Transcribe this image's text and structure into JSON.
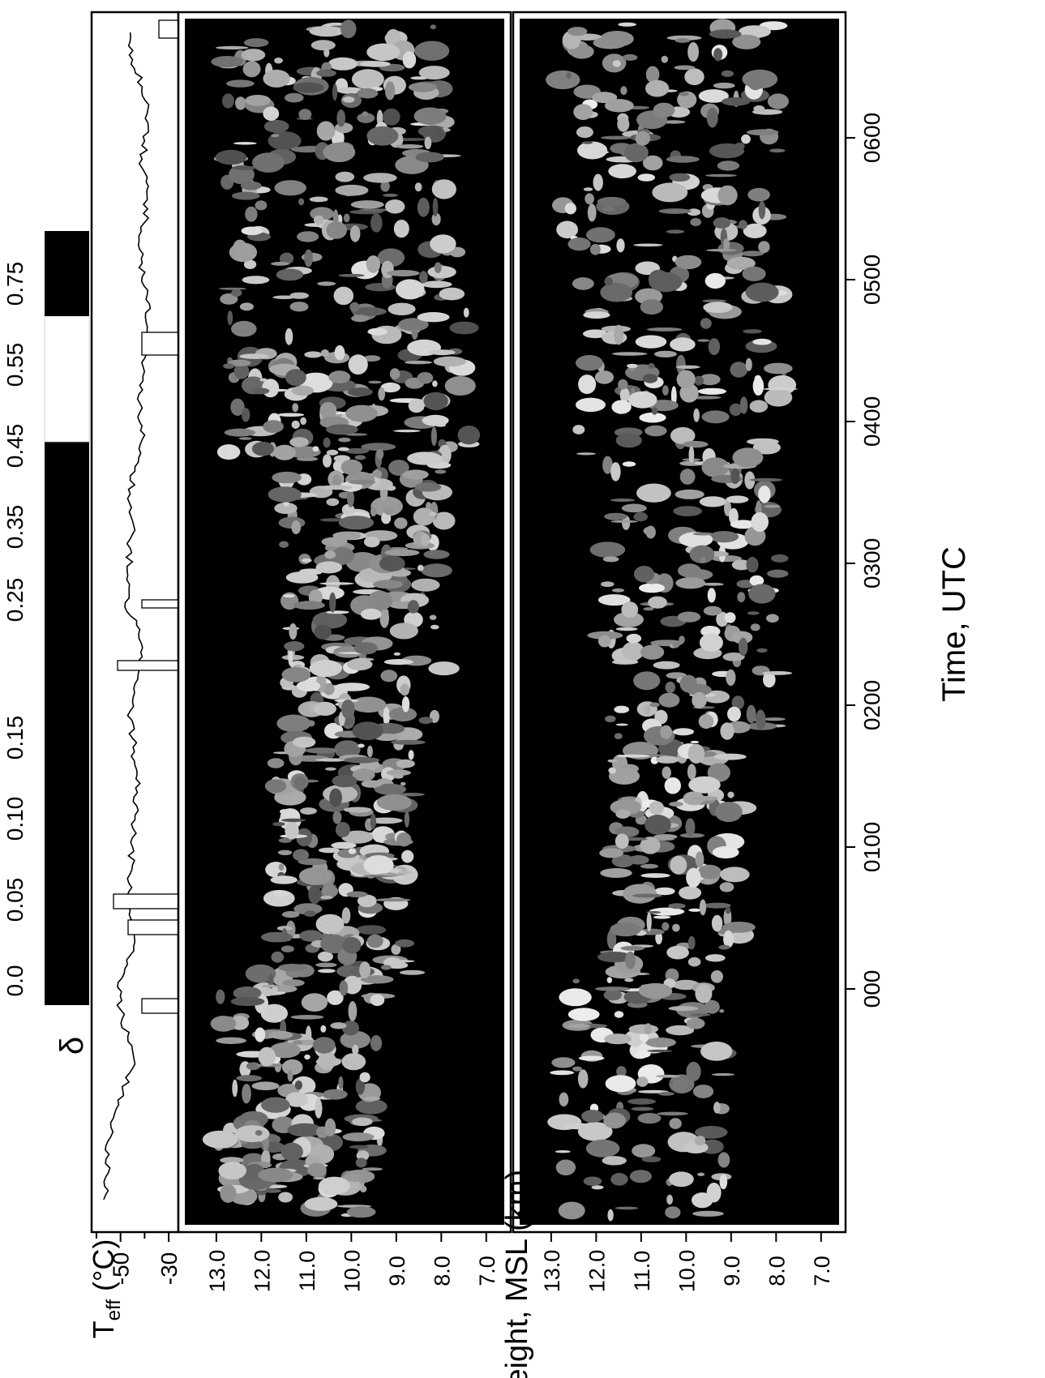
{
  "chart_data": [
    {
      "type": "line",
      "ylabel_base": "T",
      "ylabel_sub": "eff",
      "ylabel_unit": " (°C)",
      "y_ticks": [
        "-30",
        "-50"
      ],
      "y_tick_values": [
        -30,
        -50
      ],
      "ylim": [
        -62,
        -26
      ],
      "x": [
        "-0040",
        "-0030",
        "-0020",
        "-0010",
        "0000",
        "0010",
        "0020",
        "0030",
        "0040",
        "0050",
        "0100",
        "0110",
        "0120",
        "0130",
        "0140",
        "0150",
        "0200",
        "0210",
        "0220",
        "0230",
        "0240",
        "0250",
        "0300",
        "0310",
        "0320",
        "0330",
        "0340",
        "0350",
        "0400",
        "0410",
        "0420",
        "0430",
        "0440",
        "0450",
        "0500",
        "0510",
        "0520",
        "0530",
        "0540",
        "0550",
        "0600",
        "0610",
        "0620",
        "0630"
      ],
      "values": [
        -57,
        -55,
        -56,
        -53,
        -49,
        -44,
        -47,
        -50,
        -51,
        -46,
        -44,
        -47,
        -46,
        -45,
        -44,
        -43,
        -44,
        -45,
        -46,
        -44,
        -41,
        -42,
        -48,
        -47,
        -46,
        -45,
        -46,
        -44,
        -41,
        -42,
        -42,
        -40,
        -39,
        -38,
        -41,
        -42,
        -40,
        -39,
        -41,
        -40,
        -39,
        -41,
        -45,
        -46
      ]
    },
    {
      "type": "heatmap",
      "name": "panel-top",
      "y_ticks": [
        "13.0",
        "12.0",
        "11.0",
        "10.0",
        "9.0",
        "8.0",
        "7.0"
      ],
      "y_tick_values": [
        13,
        12,
        11,
        10,
        9,
        8,
        7
      ],
      "ylim": [
        6.6,
        13.7
      ]
    },
    {
      "type": "heatmap",
      "name": "panel-bottom",
      "y_ticks": [
        "13.0",
        "12.0",
        "11.0",
        "10.0",
        "9.0",
        "8.0",
        "7.0"
      ],
      "y_tick_values": [
        13,
        12,
        11,
        10,
        9,
        8,
        7
      ],
      "ylim": [
        6.6,
        13.7
      ]
    }
  ],
  "shared_ylabel": "Height, MSL (km)",
  "x_axis": {
    "label": "Time, UTC",
    "ticks": [
      "000",
      "0100",
      "0200",
      "0300",
      "0400",
      "0500",
      "0600"
    ]
  },
  "colorbar": {
    "symbol": "δ",
    "ticks": [
      "0.0",
      "0.05",
      "0.10",
      "0.15",
      "0.25",
      "0.35",
      "0.45",
      "0.55",
      "0.75"
    ],
    "colors": [
      "#000000",
      "#3a3a3a",
      "#d8d8d8",
      "#ffffff",
      "#000000"
    ]
  }
}
